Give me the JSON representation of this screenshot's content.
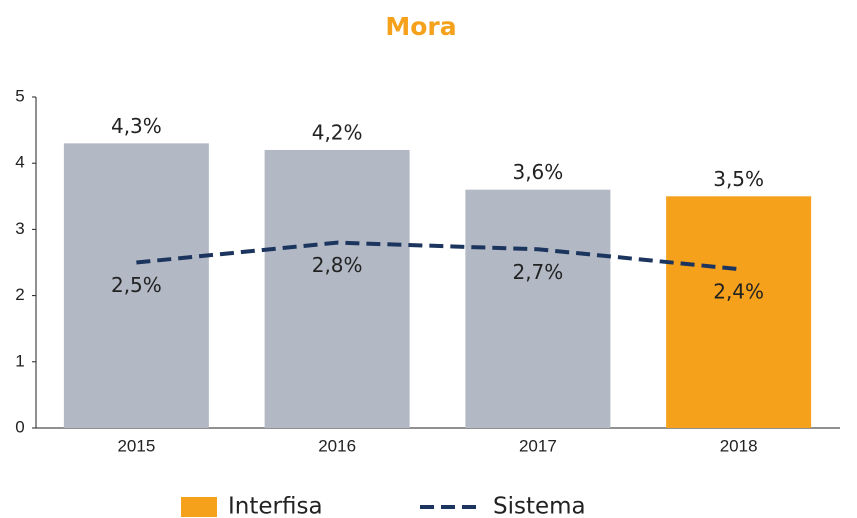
{
  "chart_data": {
    "type": "bar",
    "title": "Mora",
    "categories": [
      "2015",
      "2016",
      "2017",
      "2018"
    ],
    "series": [
      {
        "name": "Interfisa",
        "type": "bar",
        "color": "#f5a11c",
        "colors": [
          "#b2b9c4",
          "#b2b9c4",
          "#b2b9c4",
          "#f5a11c"
        ],
        "values": [
          4.3,
          4.2,
          3.6,
          3.5
        ],
        "value_labels": [
          "4,3%",
          "4,2%",
          "3,6%",
          "3,5%"
        ]
      },
      {
        "name": "Sistema",
        "type": "line",
        "color": "#1c355e",
        "dashed": true,
        "values": [
          2.5,
          2.8,
          2.7,
          2.4
        ],
        "value_labels": [
          "2,5%",
          "2,8%",
          "2,7%",
          "2,4%"
        ]
      }
    ],
    "ylim": [
      0,
      5
    ],
    "yticks": [
      0,
      1,
      2,
      3,
      4,
      5
    ]
  }
}
